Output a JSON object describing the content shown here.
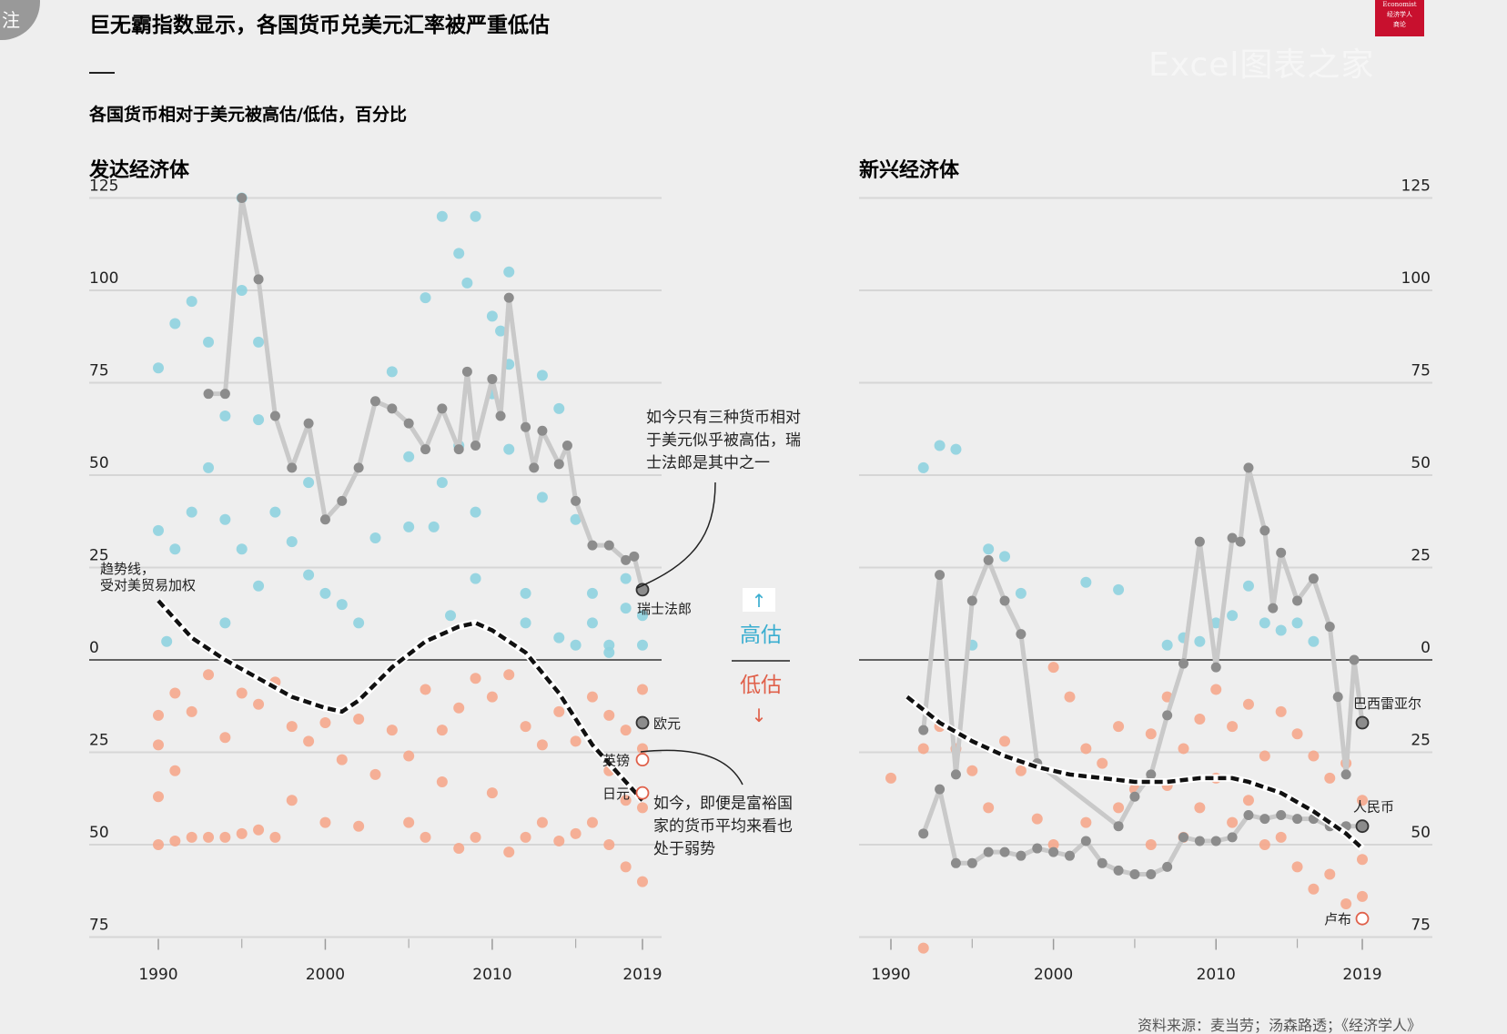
{
  "header": {
    "title": "巨无霸指数显示，各国货币兑美元汇率被严重低估",
    "subtitle": "各国货币相对于美元被高估/低估，百分比",
    "logo_line1": "Economist",
    "logo_line2": "经济学人",
    "logo_line3": "商论",
    "corner_text": "注",
    "watermark": "Excel图表之家"
  },
  "source": "资料来源：麦当劳；汤森路透；《经济学人》",
  "legend": {
    "up_arrow": "↑",
    "over": "高估",
    "under": "低估",
    "down_arrow": "↓"
  },
  "colors": {
    "over": "#8ed1df",
    "under": "#f5a78c",
    "line": "#c9c9c9",
    "marker": "#8c8c8c",
    "trend": "#111111",
    "zero": "#333333",
    "grid": "#d6d6d6",
    "over_text": "#3aaed0",
    "under_text": "#e0604a"
  },
  "chart_data": [
    {
      "type": "scatter",
      "title": "发达经济体",
      "y_tick_labels": [
        "125",
        "100",
        "75",
        "50",
        "25",
        "0",
        "25",
        "50",
        "75"
      ],
      "y_tick_values": [
        125,
        100,
        75,
        50,
        25,
        0,
        -25,
        -50,
        -75
      ],
      "x_tick_labels": [
        "1990",
        "2000",
        "2010",
        "2019"
      ],
      "x_tick_values": [
        1990,
        2000,
        2010,
        2019
      ],
      "x_minor_ticks": [
        1995,
        2005,
        2015
      ],
      "xlim": [
        1986,
        2021
      ],
      "ylim": [
        -75,
        125
      ],
      "trend_label_line1": "趋势线，",
      "trend_label_line2": "受对美贸易加权",
      "annotation_over": [
        "如今只有三种货币相对",
        "于美元似乎被高估，瑞",
        "士法郎是其中之一"
      ],
      "annotation_under": [
        "如今，即便是富裕国",
        "家的货币平均来看也",
        "处于弱势"
      ],
      "highlight_series": {
        "name": "瑞士法郎",
        "x": [
          1990,
          1993,
          1994,
          1995,
          1996,
          1997,
          1998,
          1999,
          2000,
          2001,
          2002,
          2003,
          2004,
          2005,
          2006,
          2007,
          2008,
          2008.5,
          2009,
          2010,
          2010.5,
          2011,
          2012,
          2012.5,
          2013,
          2014,
          2014.5,
          2015,
          2016,
          2017,
          2018,
          2018.5,
          2019
        ],
        "y": [
          null,
          72,
          72,
          125,
          103,
          66,
          52,
          64,
          38,
          43,
          52,
          70,
          68,
          64,
          57,
          68,
          57,
          78,
          58,
          76,
          66,
          98,
          63,
          52,
          62,
          53,
          58,
          43,
          31,
          31,
          27,
          28,
          19
        ]
      },
      "trend": {
        "x": [
          1990,
          1992,
          1994,
          1996,
          1998,
          2000,
          2001,
          2002,
          2004,
          2006,
          2008,
          2009,
          2010,
          2012,
          2014,
          2016,
          2018,
          2019
        ],
        "y": [
          16,
          6,
          0,
          -5,
          -10,
          -13,
          -14,
          -11,
          -2,
          5,
          9,
          10,
          8,
          2,
          -9,
          -23,
          -33,
          -38
        ]
      },
      "points_over": {
        "x": [
          1990,
          1990,
          1990.5,
          1991,
          1991,
          1992,
          1992,
          1993,
          1993,
          1994,
          1994,
          1994,
          1995,
          1995,
          1995,
          1996,
          1996,
          1996,
          1997,
          1998,
          1999,
          1999,
          2000,
          2001,
          2002,
          2003,
          2004,
          2005,
          2005,
          2006,
          2006.5,
          2007,
          2007,
          2007.5,
          2008,
          2008,
          2008.5,
          2009,
          2009,
          2009,
          2010,
          2010,
          2010.5,
          2011,
          2011,
          2011,
          2012,
          2012,
          2013,
          2013,
          2014,
          2014,
          2015,
          2015,
          2016,
          2016,
          2017,
          2017,
          2018,
          2018,
          2019,
          2019
        ],
        "y": [
          79,
          35,
          5,
          91,
          30,
          97,
          40,
          86,
          52,
          66,
          38,
          10,
          125,
          100,
          30,
          86,
          65,
          20,
          40,
          32,
          48,
          23,
          18,
          15,
          10,
          33,
          78,
          36,
          55,
          98,
          36,
          120,
          48,
          12,
          110,
          58,
          102,
          120,
          40,
          22,
          93,
          72,
          89,
          105,
          80,
          57,
          18,
          10,
          77,
          44,
          68,
          6,
          38,
          4,
          10,
          18,
          4,
          2,
          22,
          14,
          12,
          4
        ]
      },
      "points_under": {
        "x": [
          1990,
          1990,
          1990,
          1990,
          1991,
          1991,
          1991,
          1992,
          1992,
          1993,
          1993,
          1994,
          1994,
          1995,
          1995,
          1996,
          1996,
          1997,
          1997,
          1998,
          1998,
          1999,
          2000,
          2000,
          2001,
          2002,
          2002,
          2003,
          2004,
          2005,
          2005,
          2006,
          2006,
          2007,
          2007,
          2008,
          2008,
          2009,
          2009,
          2010,
          2010,
          2011,
          2011,
          2012,
          2012,
          2013,
          2013,
          2014,
          2014,
          2015,
          2015,
          2016,
          2016,
          2017,
          2017,
          2017,
          2018,
          2018,
          2018,
          2019,
          2019,
          2019,
          2019
        ],
        "y": [
          -15,
          -23,
          -37,
          -50,
          -9,
          -30,
          -49,
          -14,
          -48,
          -4,
          -48,
          -21,
          -48,
          -9,
          -47,
          -12,
          -46,
          -6,
          -48,
          -18,
          -38,
          -22,
          -17,
          -44,
          -27,
          -16,
          -45,
          -31,
          -19,
          -26,
          -44,
          -8,
          -48,
          -19,
          -33,
          -13,
          -51,
          -5,
          -48,
          -10,
          -36,
          -4,
          -52,
          -18,
          -48,
          -23,
          -44,
          -14,
          -49,
          -22,
          -47,
          -10,
          -44,
          -15,
          -30,
          -50,
          -19,
          -38,
          -56,
          -8,
          -24,
          -40,
          -60
        ]
      },
      "end_labels": [
        {
          "name": "瑞士法郎",
          "value": 19,
          "kind": "over"
        },
        {
          "name": "欧元",
          "value": -17,
          "kind": "marker"
        },
        {
          "name": "英镑",
          "value": -27,
          "kind": "under"
        },
        {
          "name": "日元",
          "value": -36,
          "kind": "under"
        }
      ]
    },
    {
      "type": "scatter",
      "title": "新兴经济体",
      "y_tick_labels": [
        "125",
        "100",
        "75",
        "50",
        "25",
        "0",
        "25",
        "50",
        "75"
      ],
      "y_tick_values": [
        125,
        100,
        75,
        50,
        25,
        0,
        -25,
        -50,
        -75
      ],
      "x_tick_labels": [
        "1990",
        "2000",
        "2010",
        "2019"
      ],
      "x_tick_values": [
        1990,
        2000,
        2010,
        2019
      ],
      "x_minor_ticks": [
        1995,
        2005,
        2015
      ],
      "xlim": [
        1988,
        2022
      ],
      "ylim": [
        -75,
        125
      ],
      "highlight_series_1": {
        "name": "巴西雷亚尔",
        "x": [
          1992,
          1993,
          1994,
          1995,
          1996,
          1997,
          1998,
          1999,
          2004,
          2005,
          2006,
          2007,
          2008,
          2009,
          2010,
          2011,
          2011.5,
          2012,
          2013,
          2013.5,
          2014,
          2015,
          2016,
          2017,
          2017.5,
          2018,
          2018.5,
          2019
        ],
        "y": [
          -19,
          23,
          -31,
          16,
          27,
          16,
          7,
          -28,
          -45,
          -37,
          -31,
          -15,
          -1,
          32,
          -2,
          33,
          32,
          52,
          35,
          14,
          29,
          16,
          22,
          9,
          -10,
          -31,
          0,
          -17
        ]
      },
      "highlight_series_2": {
        "name": "人民币",
        "x": [
          1992,
          1993,
          1994,
          1995,
          1996,
          1997,
          1998,
          1999,
          2000,
          2001,
          2002,
          2003,
          2004,
          2005,
          2006,
          2007,
          2008,
          2009,
          2010,
          2011,
          2012,
          2013,
          2014,
          2015,
          2016,
          2017,
          2018,
          2019
        ],
        "y": [
          -47,
          -35,
          -55,
          -55,
          -52,
          -52,
          -53,
          -51,
          -52,
          -53,
          -49,
          -55,
          -57,
          -58,
          -58,
          -56,
          -48,
          -49,
          -49,
          -48,
          -42,
          -43,
          -42,
          -43,
          -43,
          -45,
          -45,
          -45
        ]
      },
      "trend": {
        "x": [
          1991,
          1993,
          1995,
          1997,
          1999,
          2001,
          2003,
          2005,
          2007,
          2009,
          2010,
          2011,
          2012,
          2014,
          2016,
          2018,
          2019
        ],
        "y": [
          -10,
          -17,
          -22,
          -26,
          -29,
          -31,
          -32,
          -33,
          -33,
          -32,
          -32,
          -32,
          -33,
          -36,
          -41,
          -47,
          -51
        ]
      },
      "points_over": {
        "x": [
          1992,
          1993,
          1994,
          1995,
          1996,
          1997,
          1998,
          2002,
          2004,
          2007,
          2008,
          2009,
          2010,
          2011,
          2012,
          2013,
          2014,
          2015,
          2016
        ],
        "y": [
          52,
          58,
          57,
          4,
          30,
          28,
          18,
          21,
          19,
          4,
          6,
          5,
          10,
          12,
          20,
          10,
          8,
          10,
          5
        ]
      },
      "points_under": {
        "x": [
          1990,
          1992,
          1992,
          1993,
          1994,
          1995,
          1996,
          1997,
          1998,
          1999,
          2000,
          2000,
          2001,
          2002,
          2002,
          2003,
          2004,
          2004,
          2005,
          2006,
          2006,
          2007,
          2007,
          2008,
          2008,
          2009,
          2009,
          2010,
          2010,
          2011,
          2011,
          2012,
          2012,
          2013,
          2013,
          2014,
          2014,
          2015,
          2015,
          2016,
          2016,
          2017,
          2017,
          2018,
          2018,
          2019,
          2019,
          2019
        ],
        "y": [
          -32,
          -78,
          -24,
          -18,
          -24,
          -30,
          -40,
          -22,
          -30,
          -43,
          -2,
          -50,
          -10,
          -24,
          -44,
          -28,
          -18,
          -40,
          -35,
          -20,
          -50,
          -10,
          -34,
          -24,
          -48,
          -16,
          -40,
          -8,
          -32,
          -18,
          -44,
          -12,
          -38,
          -26,
          -50,
          -14,
          -48,
          -20,
          -56,
          -26,
          -62,
          -32,
          -58,
          -28,
          -66,
          -38,
          -54,
          -64
        ]
      },
      "end_labels": [
        {
          "name": "巴西雷亚尔",
          "value": -17,
          "kind": "marker"
        },
        {
          "name": "人民币",
          "value": -45,
          "kind": "marker"
        },
        {
          "name": "卢布",
          "value": -70,
          "kind": "under"
        }
      ]
    }
  ]
}
